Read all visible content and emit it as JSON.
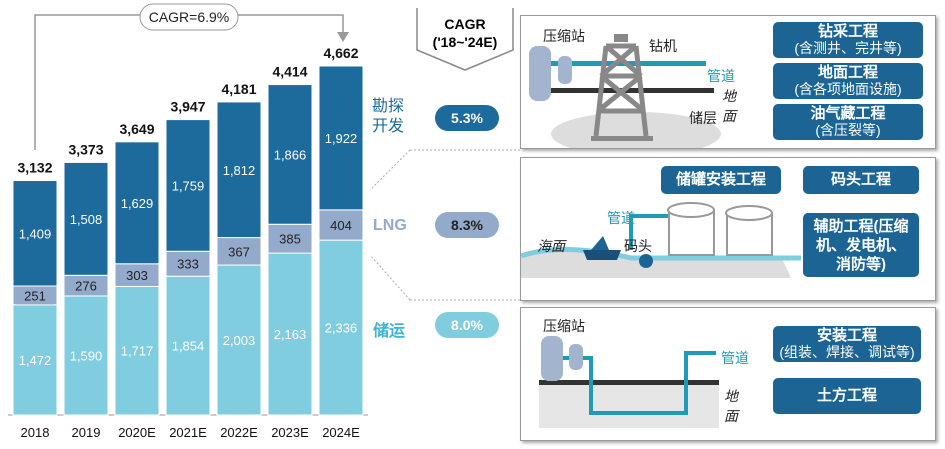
{
  "chart_data": {
    "type": "bar",
    "stacked": true,
    "categories": [
      "2018",
      "2019",
      "2020E",
      "2021E",
      "2022E",
      "2023E",
      "2024E"
    ],
    "series": [
      {
        "name": "储运",
        "values": [
          1472,
          1590,
          1717,
          1854,
          2003,
          2163,
          2336
        ],
        "color": "#80cde0"
      },
      {
        "name": "LNG",
        "values": [
          251,
          276,
          303,
          333,
          367,
          385,
          404
        ],
        "color": "#93aacb"
      },
      {
        "name": "勘探开发",
        "values": [
          1409,
          1508,
          1629,
          1759,
          1812,
          1866,
          1922
        ],
        "color": "#1c6b9c"
      }
    ],
    "totals": [
      3132,
      3373,
      3649,
      3947,
      4181,
      4414,
      4662
    ],
    "annotation": "CAGR=6.9%"
  },
  "cagr": {
    "header_line1": "CAGR",
    "header_line2": "('18~'24E)",
    "rows": [
      {
        "label_line1": "勘探",
        "label_line2": "开发",
        "value": "5.3%",
        "color": "#1c6b9c"
      },
      {
        "label_line1": "LNG",
        "label_line2": "",
        "value": "8.3%",
        "color": "#93aacb"
      },
      {
        "label_line1": "储运",
        "label_line2": "",
        "value": "8.0%",
        "color": "#80cde0"
      }
    ]
  },
  "panel1": {
    "compressor": "压缩站",
    "rig": "钻机",
    "pipe": "管道",
    "ground": "地面",
    "reservoir": "储层",
    "buttons": [
      {
        "title": "钻采工程",
        "sub": "(含测井、完井等)"
      },
      {
        "title": "地面工程",
        "sub": "(含各项地面设施)"
      },
      {
        "title": "油气藏工程",
        "sub": "(含压裂等)"
      }
    ]
  },
  "panel2": {
    "sea": "海面",
    "pipe": "管道",
    "dock": "码头",
    "buttons": [
      {
        "title": "储罐安装工程"
      },
      {
        "title": "码头工程"
      },
      {
        "title": "辅助工程(压缩机、发电机、消防等)"
      }
    ]
  },
  "panel3": {
    "compressor": "压缩站",
    "pipe": "管道",
    "ground": "地面",
    "buttons": [
      {
        "title": "安装工程",
        "sub": "(组装、焊接、调试等)"
      },
      {
        "title": "土方工程"
      }
    ]
  }
}
